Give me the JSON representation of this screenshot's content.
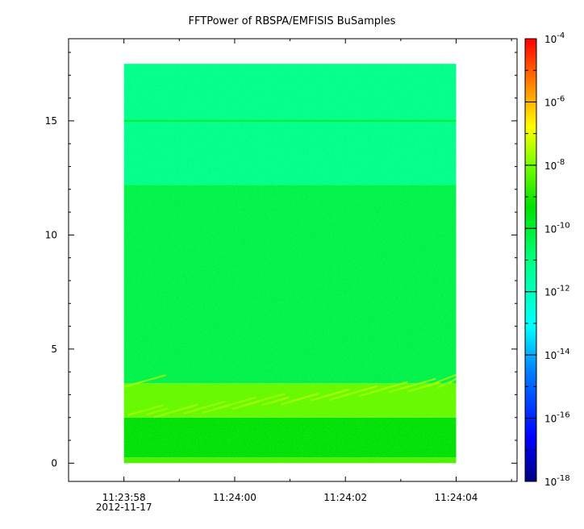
{
  "chart_data": {
    "type": "heatmap",
    "title": "FFTPower of RBSPA/EMFISIS  BuSamples",
    "xlabel": "",
    "ylabel": "",
    "x_ticks": [
      {
        "value": "11:23:58",
        "sub": "2012-11-17"
      },
      {
        "value": "11:24:00",
        "sub": ""
      },
      {
        "value": "11:24:02",
        "sub": ""
      },
      {
        "value": "11:24:04",
        "sub": ""
      }
    ],
    "xlim_seconds": [
      -1.0,
      7.1
    ],
    "data_x_range_seconds": [
      0.0,
      6.0
    ],
    "y_ticks": [
      0,
      5,
      10,
      15
    ],
    "ylim": [
      -0.8,
      18.6
    ],
    "data_y_range": [
      0.0,
      17.5
    ],
    "colorbar": {
      "scale": "log",
      "range": [
        1e-18,
        0.0001
      ],
      "tick_labels": [
        {
          "base": "10",
          "exp": "-4"
        },
        {
          "base": "10",
          "exp": "-6"
        },
        {
          "base": "10",
          "exp": "-8"
        },
        {
          "base": "10",
          "exp": "-10"
        },
        {
          "base": "10",
          "exp": "-12"
        },
        {
          "base": "10",
          "exp": "-14"
        },
        {
          "base": "10",
          "exp": "-16"
        },
        {
          "base": "10",
          "exp": "-18"
        }
      ]
    },
    "bands": [
      {
        "y_range": [
          0.0,
          0.25
        ],
        "log_power": -8.5
      },
      {
        "y_range": [
          0.25,
          2.0
        ],
        "log_power": -9.4
      },
      {
        "y_range": [
          2.0,
          3.5
        ],
        "log_power": -8.2
      },
      {
        "y_range": [
          3.5,
          12.2
        ],
        "log_power": -10.3
      },
      {
        "y_range": [
          12.2,
          17.5
        ],
        "log_power": -11.2
      }
    ],
    "line_feature": {
      "y": 15.0,
      "log_power": -10.0
    }
  }
}
